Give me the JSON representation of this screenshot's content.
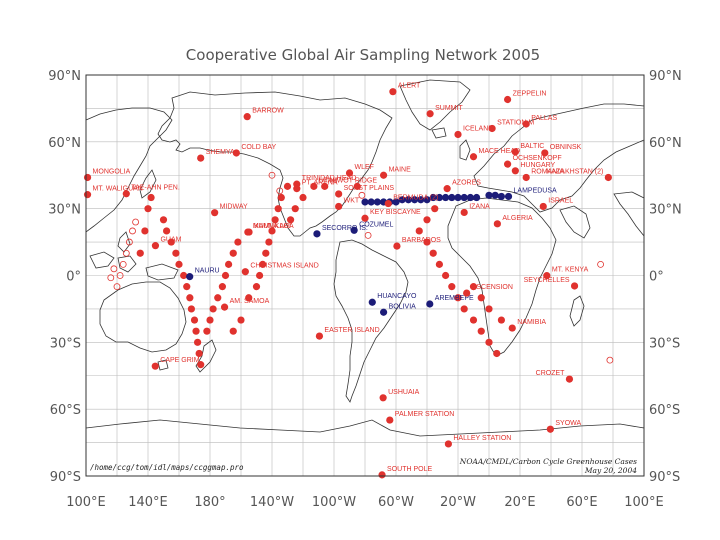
{
  "title": "Cooperative Global Air Sampling Network 2005",
  "lat_ticks": [
    "90°N",
    "60°N",
    "30°N",
    "0°",
    "30°S",
    "60°S",
    "90°S"
  ],
  "lon_ticks": [
    "100°E",
    "140°E",
    "180°",
    "140°W",
    "100°W",
    "60°W",
    "20°W",
    "20°E",
    "60°E",
    "100°E"
  ],
  "footer": {
    "path": "/home/ccg/tom/idl/maps/ccggmap.pro",
    "credit": "NOAA/CMDL/Carbon Cycle Greenhouse Cases",
    "date": "May 20, 2004"
  },
  "colors": {
    "fixed_site": "#e0322e",
    "aircraft_site": "#1c1c78",
    "grid": "#bbbbbb",
    "coast": "#333333"
  },
  "sites": [
    {
      "name": "ALERT",
      "lon": -62,
      "lat": 82.5,
      "color": "red"
    },
    {
      "name": "ZEPPELIN",
      "lon": 12,
      "lat": 79,
      "color": "red"
    },
    {
      "name": "BARROW",
      "lon": -156,
      "lat": 71.3,
      "color": "red"
    },
    {
      "name": "SUMMIT",
      "lon": -38,
      "lat": 72.6,
      "color": "red"
    },
    {
      "name": "PALLAS",
      "lon": 24,
      "lat": 68,
      "color": "red"
    },
    {
      "name": "STATION M",
      "lon": 2,
      "lat": 66,
      "color": "red"
    },
    {
      "name": "ICELAND",
      "lon": -20,
      "lat": 63.3,
      "color": "red"
    },
    {
      "name": "BALTIC",
      "lon": 17,
      "lat": 55.5,
      "color": "red"
    },
    {
      "name": "OBNINSK",
      "lon": 36,
      "lat": 55,
      "color": "red"
    },
    {
      "name": "MACE HEAD",
      "lon": -10,
      "lat": 53.3,
      "color": "red"
    },
    {
      "name": "OCHSENKOPF",
      "lon": 12,
      "lat": 50,
      "color": "red"
    },
    {
      "name": "HUNGARY",
      "lon": 17,
      "lat": 47,
      "color": "red"
    },
    {
      "name": "ROMANIA",
      "lon": 24,
      "lat": 44,
      "color": "red"
    },
    {
      "name": "KAZAKHSTAN (2)",
      "lon": 77,
      "lat": 44,
      "color": "red"
    },
    {
      "name": "MT. WALIGUAN",
      "lon": 101,
      "lat": 36.3,
      "color": "red"
    },
    {
      "name": "SHEMYA",
      "lon": 174,
      "lat": 52.7,
      "color": "red"
    },
    {
      "name": "COLD BAY",
      "lon": -163,
      "lat": 55,
      "color": "red"
    },
    {
      "name": "MONGOLIA",
      "lon": 101,
      "lat": 44,
      "color": "red"
    },
    {
      "name": "TAE-AHN PEN.",
      "lon": 126,
      "lat": 36.7,
      "color": "red"
    },
    {
      "name": "TRINIDAD HEAD",
      "lon": -124,
      "lat": 41,
      "color": "red"
    },
    {
      "name": "PT. ARENA",
      "lon": -124,
      "lat": 39,
      "color": "red"
    },
    {
      "name": "UTAH",
      "lon": -113,
      "lat": 40,
      "color": "red"
    },
    {
      "name": "WLEF",
      "lon": -90,
      "lat": 46,
      "color": "red"
    },
    {
      "name": "NIWOT RIDGE",
      "lon": -106,
      "lat": 40,
      "color": "red"
    },
    {
      "name": "SO. GT PLAINS",
      "lon": -97,
      "lat": 36.6,
      "color": "red"
    },
    {
      "name": "MAINE",
      "lon": -68,
      "lat": 45,
      "color": "red"
    },
    {
      "name": "AZORES",
      "lon": -27,
      "lat": 39,
      "color": "red"
    },
    {
      "name": "WKT",
      "lon": -97,
      "lat": 31,
      "color": "red"
    },
    {
      "name": "BERMUDA (2)",
      "lon": -65,
      "lat": 32.3,
      "color": "red"
    },
    {
      "name": "IZANA",
      "lon": -16,
      "lat": 28.3,
      "color": "red"
    },
    {
      "name": "KEY BISCAYNE",
      "lon": -80,
      "lat": 25.7,
      "color": "red"
    },
    {
      "name": "LAMPEDUSA",
      "lon": 12.6,
      "lat": 35.5,
      "color": "blue"
    },
    {
      "name": "ISRAEL",
      "lon": 35,
      "lat": 31,
      "color": "red"
    },
    {
      "name": "ALGERIA",
      "lon": 5.4,
      "lat": 23.2,
      "color": "red"
    },
    {
      "name": "MIDWAY",
      "lon": -177,
      "lat": 28.2,
      "color": "red"
    },
    {
      "name": "MAUNA LOA",
      "lon": -155.6,
      "lat": 19.5,
      "color": "red"
    },
    {
      "name": "KUMUKAHI",
      "lon": -154.8,
      "lat": 19.5,
      "color": "red"
    },
    {
      "name": "GUAM",
      "lon": 144.8,
      "lat": 13.4,
      "color": "red"
    },
    {
      "name": "SECORRO IS.",
      "lon": -111,
      "lat": 18.7,
      "color": "blue"
    },
    {
      "name": "COZUMEL",
      "lon": -87,
      "lat": 20.3,
      "color": "blue"
    },
    {
      "name": "BARBADOS",
      "lon": -59.4,
      "lat": 13.2,
      "color": "red"
    },
    {
      "name": "CHRISTMAS ISLAND",
      "lon": -157.2,
      "lat": 1.7,
      "color": "red"
    },
    {
      "name": "NAURU",
      "lon": 166.9,
      "lat": -0.5,
      "color": "blue"
    },
    {
      "name": "MT. KENYA",
      "lon": 37.3,
      "lat": -0.05,
      "color": "red"
    },
    {
      "name": "SEYCHELLES",
      "lon": 55.2,
      "lat": -4.7,
      "color": "red"
    },
    {
      "name": "AM. SAMOA",
      "lon": -170.6,
      "lat": -14.2,
      "color": "red"
    },
    {
      "name": "HUANCAYO",
      "lon": -75.3,
      "lat": -12,
      "color": "blue"
    },
    {
      "name": "BOLIVIA",
      "lon": -68,
      "lat": -16.5,
      "color": "blue"
    },
    {
      "name": "AREMBEPE",
      "lon": -38.2,
      "lat": -12.8,
      "color": "blue"
    },
    {
      "name": "ASCENSION",
      "lon": -14.4,
      "lat": -7.9,
      "color": "red"
    },
    {
      "name": "NAMIBIA",
      "lon": 15,
      "lat": -23.6,
      "color": "red"
    },
    {
      "name": "EASTER ISLAND",
      "lon": -109.4,
      "lat": -27.2,
      "color": "red"
    },
    {
      "name": "CAPE GRIM",
      "lon": 144.7,
      "lat": -40.7,
      "color": "red"
    },
    {
      "name": "CROZET",
      "lon": 51.9,
      "lat": -46.5,
      "color": "red"
    },
    {
      "name": "USHUAIA",
      "lon": -68.3,
      "lat": -54.9,
      "color": "red"
    },
    {
      "name": "PALMER STATION",
      "lon": -64,
      "lat": -64.9,
      "color": "red"
    },
    {
      "name": "SYOWA",
      "lon": 39.6,
      "lat": -69,
      "color": "red"
    },
    {
      "name": "HALLEY STATION",
      "lon": -26.2,
      "lat": -75.6,
      "color": "red"
    },
    {
      "name": "SOUTH POLE",
      "lon": -69,
      "lat": -89.5,
      "color": "red"
    }
  ],
  "unlabeled_points": [
    {
      "lon": -80,
      "lat": 33,
      "color": "blue"
    },
    {
      "lon": -76,
      "lat": 33,
      "color": "blue"
    },
    {
      "lon": -72,
      "lat": 33,
      "color": "blue"
    },
    {
      "lon": -68,
      "lat": 33,
      "color": "blue"
    },
    {
      "lon": -64,
      "lat": 33,
      "color": "blue"
    },
    {
      "lon": -60,
      "lat": 33,
      "color": "blue"
    },
    {
      "lon": -56,
      "lat": 34,
      "color": "blue"
    },
    {
      "lon": -52,
      "lat": 34,
      "color": "blue"
    },
    {
      "lon": -48,
      "lat": 34,
      "color": "blue"
    },
    {
      "lon": -44,
      "lat": 34,
      "color": "blue"
    },
    {
      "lon": -40,
      "lat": 34,
      "color": "blue"
    },
    {
      "lon": -36,
      "lat": 35,
      "color": "blue"
    },
    {
      "lon": -32,
      "lat": 35,
      "color": "blue"
    },
    {
      "lon": -28,
      "lat": 35,
      "color": "blue"
    },
    {
      "lon": -24,
      "lat": 35,
      "color": "blue"
    },
    {
      "lon": -20,
      "lat": 35,
      "color": "blue"
    },
    {
      "lon": -16,
      "lat": 35,
      "color": "blue"
    },
    {
      "lon": -12,
      "lat": 35,
      "color": "blue"
    },
    {
      "lon": -8,
      "lat": 35,
      "color": "blue"
    },
    {
      "lon": 0,
      "lat": 36,
      "color": "blue"
    },
    {
      "lon": 4,
      "lat": 36,
      "color": "blue"
    },
    {
      "lon": 8,
      "lat": 35.5,
      "color": "blue"
    },
    {
      "lon": 150,
      "lat": 25,
      "color": "red"
    },
    {
      "lon": 152,
      "lat": 20,
      "color": "red"
    },
    {
      "lon": 155,
      "lat": 15,
      "color": "red"
    },
    {
      "lon": 158,
      "lat": 10,
      "color": "red"
    },
    {
      "lon": 160,
      "lat": 5,
      "color": "red"
    },
    {
      "lon": 163,
      "lat": 0,
      "color": "red"
    },
    {
      "lon": 165,
      "lat": -5,
      "color": "red"
    },
    {
      "lon": 167,
      "lat": -10,
      "color": "red"
    },
    {
      "lon": 168,
      "lat": -15,
      "color": "red"
    },
    {
      "lon": 170,
      "lat": -20,
      "color": "red"
    },
    {
      "lon": 171,
      "lat": -25,
      "color": "red"
    },
    {
      "lon": 172,
      "lat": -30,
      "color": "red"
    },
    {
      "lon": 173,
      "lat": -35,
      "color": "red"
    },
    {
      "lon": 174,
      "lat": -40,
      "color": "red"
    },
    {
      "lon": 178,
      "lat": -25,
      "color": "red"
    },
    {
      "lon": 180,
      "lat": -20,
      "color": "red"
    },
    {
      "lon": -178,
      "lat": -15,
      "color": "red"
    },
    {
      "lon": -175,
      "lat": -10,
      "color": "red"
    },
    {
      "lon": -172,
      "lat": -5,
      "color": "red"
    },
    {
      "lon": -170,
      "lat": 0,
      "color": "red"
    },
    {
      "lon": -168,
      "lat": 5,
      "color": "red"
    },
    {
      "lon": -165,
      "lat": 10,
      "color": "red"
    },
    {
      "lon": -162,
      "lat": 15,
      "color": "red"
    },
    {
      "lon": -150,
      "lat": -5,
      "color": "red"
    },
    {
      "lon": -148,
      "lat": 0,
      "color": "red"
    },
    {
      "lon": -146,
      "lat": 5,
      "color": "red"
    },
    {
      "lon": -144,
      "lat": 10,
      "color": "red"
    },
    {
      "lon": -142,
      "lat": 15,
      "color": "red"
    },
    {
      "lon": -140,
      "lat": 20,
      "color": "red"
    },
    {
      "lon": -138,
      "lat": 25,
      "color": "red"
    },
    {
      "lon": -136,
      "lat": 30,
      "color": "red"
    },
    {
      "lon": -134,
      "lat": 35,
      "color": "red"
    },
    {
      "lon": -130,
      "lat": 40,
      "color": "red"
    },
    {
      "lon": -155,
      "lat": -10,
      "color": "red"
    },
    {
      "lon": -160,
      "lat": -20,
      "color": "red"
    },
    {
      "lon": -165,
      "lat": -25,
      "color": "red"
    },
    {
      "lon": 135,
      "lat": 10,
      "color": "red"
    },
    {
      "lon": 138,
      "lat": 20,
      "color": "red"
    },
    {
      "lon": 140,
      "lat": 30,
      "color": "red"
    },
    {
      "lon": 142,
      "lat": 35,
      "color": "red"
    },
    {
      "lon": -45,
      "lat": 20,
      "color": "red"
    },
    {
      "lon": -40,
      "lat": 15,
      "color": "red"
    },
    {
      "lon": -36,
      "lat": 10,
      "color": "red"
    },
    {
      "lon": -32,
      "lat": 5,
      "color": "red"
    },
    {
      "lon": -28,
      "lat": 0,
      "color": "red"
    },
    {
      "lon": -24,
      "lat": -5,
      "color": "red"
    },
    {
      "lon": -20,
      "lat": -10,
      "color": "red"
    },
    {
      "lon": -16,
      "lat": -15,
      "color": "red"
    },
    {
      "lon": -10,
      "lat": -20,
      "color": "red"
    },
    {
      "lon": -5,
      "lat": -25,
      "color": "red"
    },
    {
      "lon": 0,
      "lat": -30,
      "color": "red"
    },
    {
      "lon": 5,
      "lat": -35,
      "color": "red"
    },
    {
      "lon": -10,
      "lat": -5,
      "color": "red"
    },
    {
      "lon": -5,
      "lat": -10,
      "color": "red"
    },
    {
      "lon": 0,
      "lat": -15,
      "color": "red"
    },
    {
      "lon": 8,
      "lat": -20,
      "color": "red"
    },
    {
      "lon": -35,
      "lat": 30,
      "color": "red"
    },
    {
      "lon": -40,
      "lat": 25,
      "color": "red"
    },
    {
      "lon": -85,
      "lat": 40,
      "color": "red"
    },
    {
      "lon": -120,
      "lat": 35,
      "color": "red"
    },
    {
      "lon": -125,
      "lat": 30,
      "color": "red"
    },
    {
      "lon": -128,
      "lat": 25,
      "color": "red"
    }
  ],
  "open_circles": [
    {
      "lon": 130,
      "lat": 20
    },
    {
      "lon": 128,
      "lat": 15
    },
    {
      "lon": 126,
      "lat": 10
    },
    {
      "lon": 124,
      "lat": 5
    },
    {
      "lon": 122,
      "lat": 0
    },
    {
      "lon": 120,
      "lat": -5
    },
    {
      "lon": 118,
      "lat": 3
    },
    {
      "lon": 132,
      "lat": 24
    },
    {
      "lon": 116,
      "lat": -1
    },
    {
      "lon": 72,
      "lat": 5
    },
    {
      "lon": 78,
      "lat": -38
    },
    {
      "lon": -140,
      "lat": 45
    },
    {
      "lon": -135,
      "lat": 38
    },
    {
      "lon": -78,
      "lat": 18
    },
    {
      "lon": -82,
      "lat": 36
    }
  ]
}
